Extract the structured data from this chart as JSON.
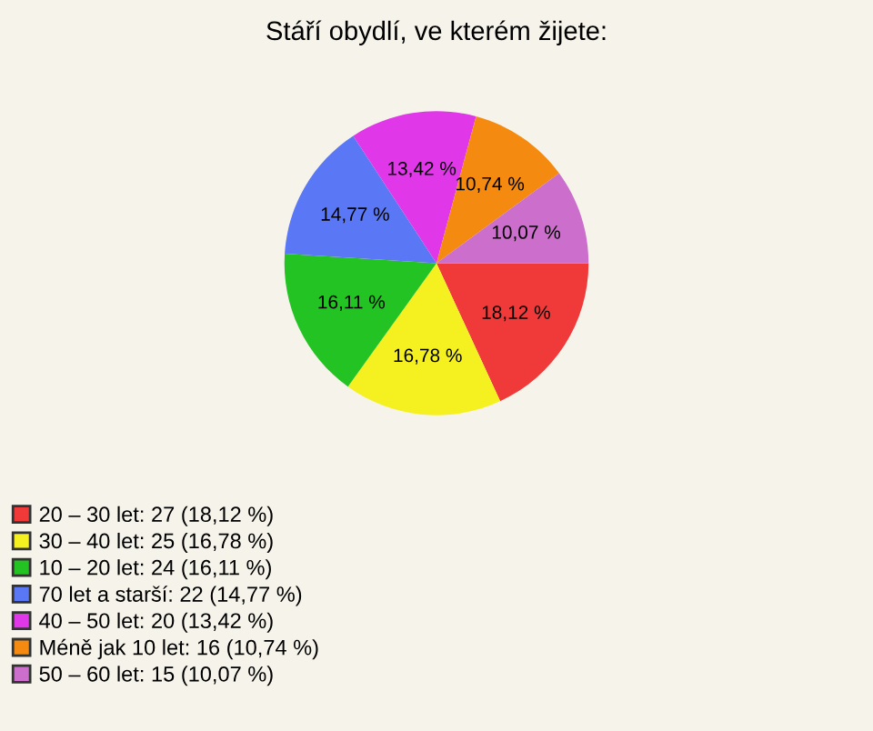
{
  "chart_data": {
    "type": "pie",
    "title": "Stáří obydlí, ve kterém žijete:",
    "categories": [
      "20 – 30 let: 27 (18,12 %)",
      "30 – 40 let: 25 (16,78 %)",
      "10 – 20 let: 24 (16,11 %)",
      "70 let a starší: 22 (14,77 %)",
      "40 – 50 let: 20 (13,42 %)",
      "Méně jak 10 let: 16 (10,74 %)",
      "50 – 60 let: 15 (10,07 %)"
    ],
    "values": [
      18.12,
      16.78,
      16.11,
      14.77,
      13.42,
      10.74,
      10.07
    ],
    "value_labels": [
      "18,12 %",
      "16,78 %",
      "16,11 %",
      "14,77 %",
      "13,42 %",
      "10,74 %",
      "10,07 %"
    ],
    "colors": [
      "#f03a3a",
      "#f5f020",
      "#22c322",
      "#5a78f5",
      "#e038e8",
      "#f58a10",
      "#cc6fcc"
    ],
    "legend": "bottom left"
  }
}
